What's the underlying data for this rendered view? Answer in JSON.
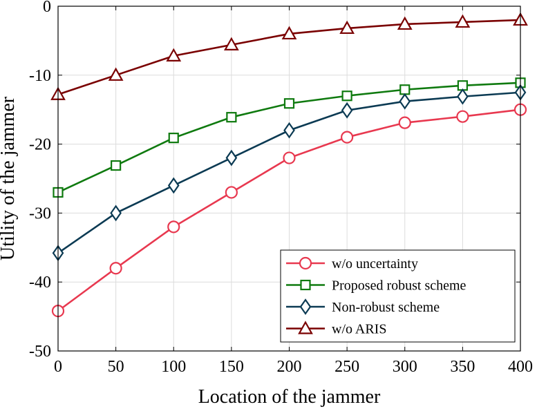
{
  "chart_data": {
    "type": "line",
    "title": "",
    "xlabel": "Location of the jammer",
    "ylabel": "Utility of the jammer",
    "x": [
      0,
      50,
      100,
      150,
      200,
      250,
      300,
      350,
      400
    ],
    "xlim": [
      0,
      400
    ],
    "ylim": [
      -50,
      0
    ],
    "xticks": [
      0,
      50,
      100,
      150,
      200,
      250,
      300,
      350,
      400
    ],
    "yticks": [
      0,
      -10,
      -20,
      -30,
      -40,
      -50
    ],
    "grid": true,
    "legend_position": "bottom-right",
    "series": [
      {
        "name": "w/o uncertainty",
        "color": "#e8384f",
        "marker": "circle",
        "values": [
          -44.2,
          -38,
          -32,
          -27,
          -22,
          -19,
          -16.9,
          -16,
          -15
        ]
      },
      {
        "name": "Proposed robust scheme",
        "color": "#0f7a0f",
        "marker": "square",
        "values": [
          -27,
          -23.1,
          -19.1,
          -16.1,
          -14.1,
          -13,
          -12.1,
          -11.5,
          -11.1
        ]
      },
      {
        "name": "Non-robust scheme",
        "color": "#0b3a53",
        "marker": "diamond",
        "values": [
          -35.8,
          -30,
          -26,
          -22,
          -18,
          -15.1,
          -13.8,
          -13.1,
          -12.5
        ]
      },
      {
        "name": "w/o ARIS",
        "color": "#7a0000",
        "marker": "triangle",
        "values": [
          -12.8,
          -10,
          -7.2,
          -5.6,
          -4,
          -3.2,
          -2.6,
          -2.3,
          -2
        ]
      }
    ]
  }
}
